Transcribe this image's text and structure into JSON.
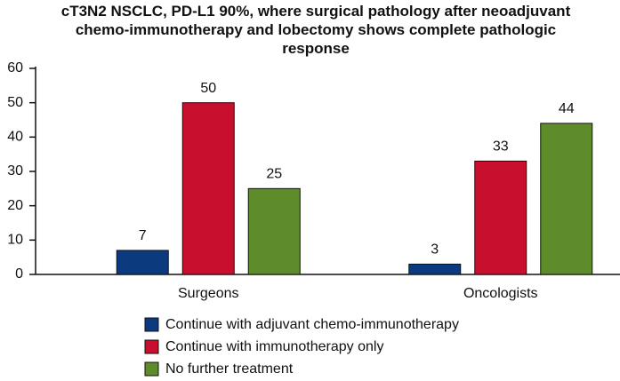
{
  "chart_data": {
    "type": "bar",
    "title": "cT3N2 NSCLC, PD-L1 90%, where surgical pathology after neoadjuvant chemo-immunotherapy and lobectomy shows complete pathologic response",
    "categories": [
      "Surgeons",
      "Oncologists"
    ],
    "series": [
      {
        "name": "Continue with adjuvant chemo-immunotherapy",
        "color": "#0b3a7e",
        "values": [
          7,
          3
        ]
      },
      {
        "name": "Continue with immunotherapy only",
        "color": "#c8102e",
        "values": [
          50,
          33
        ]
      },
      {
        "name": "No further treatment",
        "color": "#5e8c2b",
        "values": [
          25,
          44
        ]
      }
    ],
    "ylim": [
      0,
      60
    ],
    "yticks": [
      0,
      10,
      20,
      30,
      40,
      50,
      60
    ]
  }
}
